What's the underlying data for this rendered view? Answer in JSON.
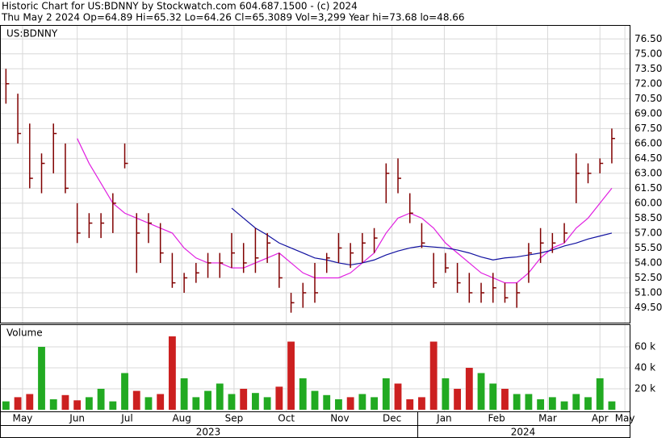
{
  "chart_data": [
    {
      "type": "ohlc",
      "title": "Historic Chart for US:BDNNY by Stockwatch.com 604.687.1500 - (c) 2024",
      "subtitle": "Thu May  2 2024   Op=64.89  Hi=65.32  Lo=64.26  Cl=65.3089  Vol=3,299  Year hi=73.68  lo=48.66",
      "label": "US:BDNNY",
      "color": "#800000",
      "high": [
        73.5,
        71,
        68,
        65,
        68,
        66,
        60,
        59,
        59,
        61,
        66,
        59,
        59,
        58,
        55,
        53,
        54,
        55,
        55,
        57,
        56,
        57.5,
        57,
        55,
        51,
        52,
        54,
        55,
        57,
        56,
        57,
        57.5,
        64,
        64.5,
        61,
        58,
        55,
        55,
        54,
        53,
        52,
        53,
        52,
        52,
        56,
        57.5,
        57,
        58,
        65,
        64,
        64.5,
        67.5
      ],
      "low": [
        70,
        66,
        61.5,
        61,
        63,
        61,
        56,
        56.5,
        56.5,
        57,
        63.5,
        53,
        56,
        54,
        51.5,
        51,
        52,
        52.5,
        52.5,
        53.5,
        53,
        53,
        54,
        51.5,
        49,
        49.5,
        50,
        53,
        54,
        53.5,
        54,
        55,
        60,
        61,
        58,
        55.5,
        51.5,
        53,
        51,
        50,
        50,
        50,
        50,
        49.5,
        52,
        54,
        55,
        56,
        60,
        62,
        63,
        64
      ],
      "close": [
        72,
        67,
        62.5,
        64,
        67,
        61.5,
        57,
        58,
        58,
        60,
        64,
        57,
        58,
        55,
        52,
        52.5,
        53,
        54,
        54,
        55,
        54,
        54.5,
        56,
        52.5,
        50,
        51,
        51,
        54.5,
        55.5,
        55,
        56,
        56.5,
        63,
        62.5,
        59,
        56,
        52,
        53.5,
        52,
        51,
        51,
        51.5,
        50.5,
        51,
        55,
        56,
        56,
        57,
        63,
        63,
        64,
        66.5
      ],
      "series": [
        {
          "color": "#e020e0",
          "values": [
            null,
            null,
            null,
            null,
            null,
            null,
            66.5,
            64,
            62,
            60,
            59,
            58.5,
            58,
            57.5,
            57,
            55.5,
            54.5,
            54,
            54,
            53.5,
            53.5,
            54,
            54.5,
            55,
            54,
            53,
            52.5,
            52.5,
            52.5,
            53,
            54,
            55,
            57,
            58.5,
            59,
            58.5,
            57.5,
            56,
            55,
            54,
            53,
            52.5,
            52,
            52,
            53,
            54.5,
            55.5,
            56,
            57.5,
            58.5,
            60,
            61.5
          ]
        },
        {
          "color": "#1010a0",
          "values": [
            null,
            null,
            null,
            null,
            null,
            null,
            null,
            null,
            null,
            null,
            null,
            null,
            null,
            null,
            null,
            null,
            null,
            null,
            null,
            59.5,
            58.5,
            57.5,
            56.8,
            56,
            55.5,
            55,
            54.5,
            54.3,
            54,
            53.8,
            54,
            54.3,
            54.8,
            55.2,
            55.5,
            55.7,
            55.6,
            55.5,
            55.3,
            55,
            54.6,
            54.3,
            54.5,
            54.6,
            54.8,
            55,
            55.3,
            55.7,
            56,
            56.4,
            56.7,
            57
          ]
        }
      ],
      "xlim": [
        0,
        53
      ],
      "xticks": [
        {
          "value": 1.9,
          "label": "May"
        },
        {
          "value": 6.5,
          "label": "Jun"
        },
        {
          "value": 10.7,
          "label": "Jul"
        },
        {
          "value": 15.3,
          "label": "Aug"
        },
        {
          "value": 19.7,
          "label": "Sep"
        },
        {
          "value": 24.1,
          "label": "Oct"
        },
        {
          "value": 28.6,
          "label": "Nov"
        },
        {
          "value": 33,
          "label": "Dec"
        },
        {
          "value": 37.4,
          "label": "Jan"
        },
        {
          "value": 41.8,
          "label": "Feb"
        },
        {
          "value": 46.1,
          "label": "Mar"
        },
        {
          "value": 50.5,
          "label": "Apr"
        },
        {
          "value": 52.6,
          "label": "May"
        }
      ],
      "years": [
        "2023",
        "2024"
      ],
      "ylim": [
        48,
        77.9
      ],
      "yticks": [
        {
          "value": 49.5,
          "label": "49.50"
        },
        {
          "value": 51,
          "label": "51.00"
        },
        {
          "value": 52.5,
          "label": "52.50"
        },
        {
          "value": 54,
          "label": "54.00"
        },
        {
          "value": 55.5,
          "label": "55.50"
        },
        {
          "value": 57,
          "label": "57.00"
        },
        {
          "value": 58.5,
          "label": "58.50"
        },
        {
          "value": 60,
          "label": "60.00"
        },
        {
          "value": 61.5,
          "label": "61.50"
        },
        {
          "value": 63,
          "label": "63.00"
        },
        {
          "value": 64.5,
          "label": "64.50"
        },
        {
          "value": 66,
          "label": "66.00"
        },
        {
          "value": 67.5,
          "label": "67.50"
        },
        {
          "value": 69,
          "label": "69.00"
        },
        {
          "value": 70.5,
          "label": "70.50"
        },
        {
          "value": 72,
          "label": "72.00"
        },
        {
          "value": 73.5,
          "label": "73.50"
        },
        {
          "value": 75,
          "label": "75.00"
        },
        {
          "value": 76.5,
          "label": "76.50"
        }
      ],
      "grid": true
    },
    {
      "type": "bar",
      "title": "Volume",
      "up_color": "#22aa22",
      "down_color": "#cc2020",
      "values": [
        8000,
        12000,
        15000,
        60000,
        10000,
        14000,
        9000,
        12000,
        20000,
        8000,
        35000,
        18000,
        12000,
        15000,
        70000,
        30000,
        12000,
        18000,
        25000,
        15000,
        20000,
        16000,
        12000,
        22000,
        65000,
        30000,
        18000,
        14000,
        10000,
        12000,
        15000,
        12000,
        30000,
        25000,
        10000,
        12000,
        65000,
        30000,
        20000,
        40000,
        35000,
        25000,
        20000,
        15000,
        15000,
        10000,
        12000,
        8000,
        15000,
        12000,
        30000,
        8000
      ],
      "ylim": [
        0,
        80000
      ],
      "yticks": [
        {
          "value": 20000,
          "label": "20 k"
        },
        {
          "value": 40000,
          "label": "40 k"
        },
        {
          "value": 60000,
          "label": "60 k"
        }
      ],
      "grid": true
    }
  ]
}
